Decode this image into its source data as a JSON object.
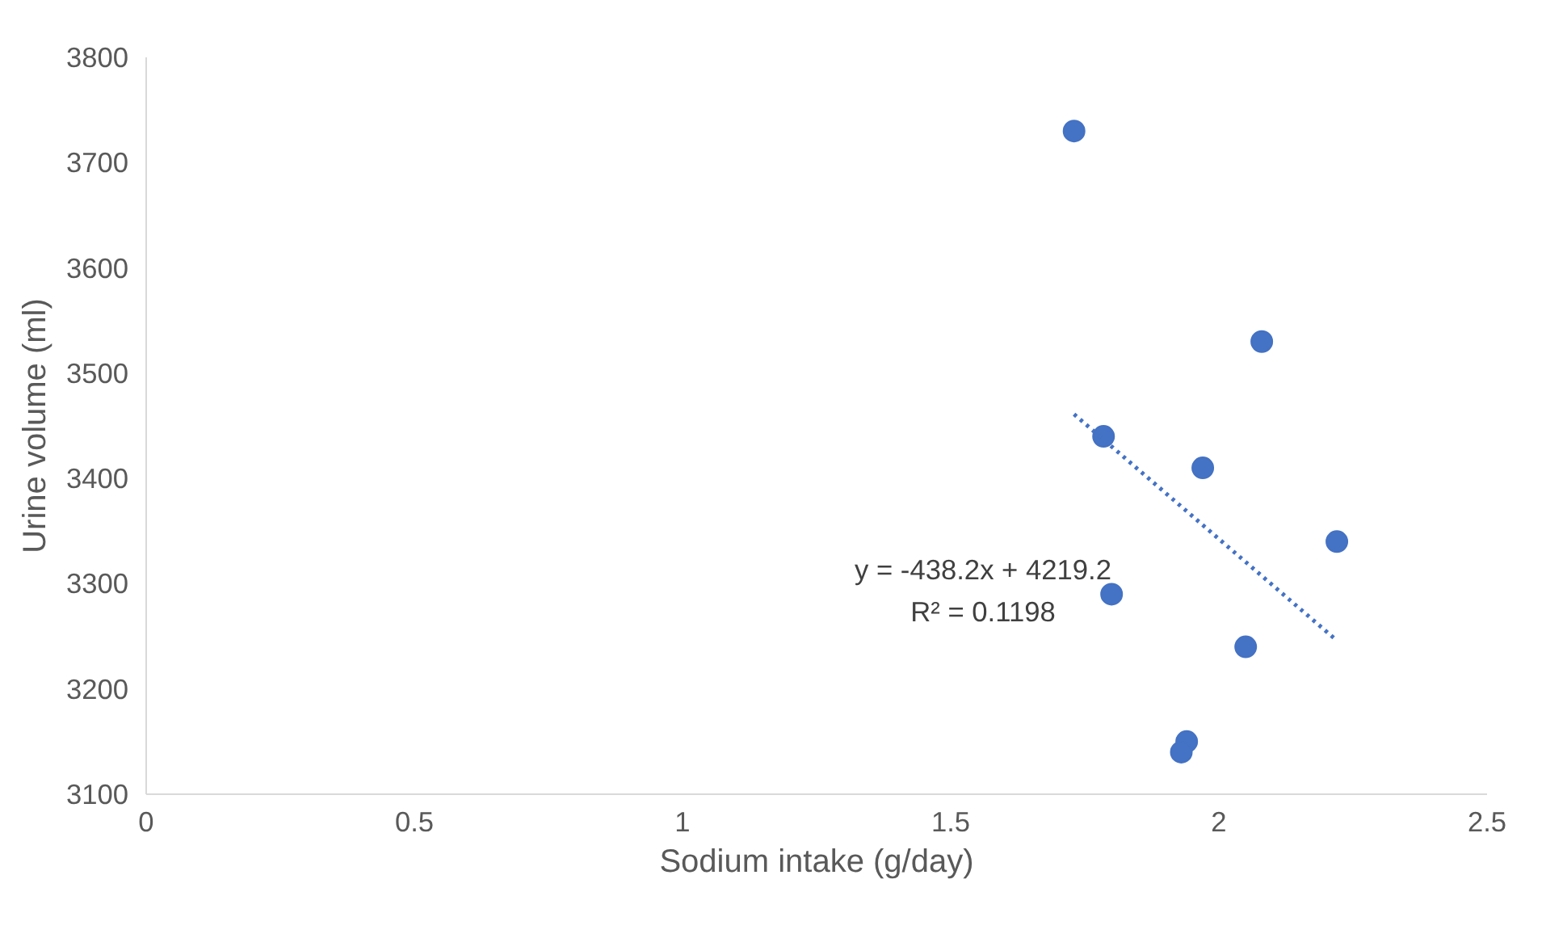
{
  "chart_data": {
    "type": "scatter",
    "xlabel": "Sodium intake (g/day)",
    "ylabel": "Urine volume (ml)",
    "xlim": [
      0,
      2.5
    ],
    "xticks": [
      0,
      0.5,
      1,
      1.5,
      2,
      2.5
    ],
    "ylim": [
      3100,
      3800
    ],
    "yticks": [
      3100,
      3200,
      3300,
      3400,
      3500,
      3600,
      3700,
      3800
    ],
    "grid": false,
    "marker": "circle",
    "series": [
      {
        "color": "#4472c4",
        "x": [
          1.73,
          2.08,
          1.785,
          1.97,
          2.22,
          1.8,
          2.05,
          1.94,
          1.93
        ],
        "values": [
          3730,
          3530,
          3440,
          3410,
          3340,
          3290,
          3240,
          3150,
          3140
        ]
      },
      {
        "type": "line",
        "color": "#4472c4",
        "line_style": "dotted",
        "marker": "none",
        "x": [
          1.73,
          2.22
        ],
        "values": [
          3461,
          3246
        ]
      }
    ],
    "annotations": [
      "y = -438.2x + 4219.2",
      "R² = 0.1198"
    ]
  }
}
